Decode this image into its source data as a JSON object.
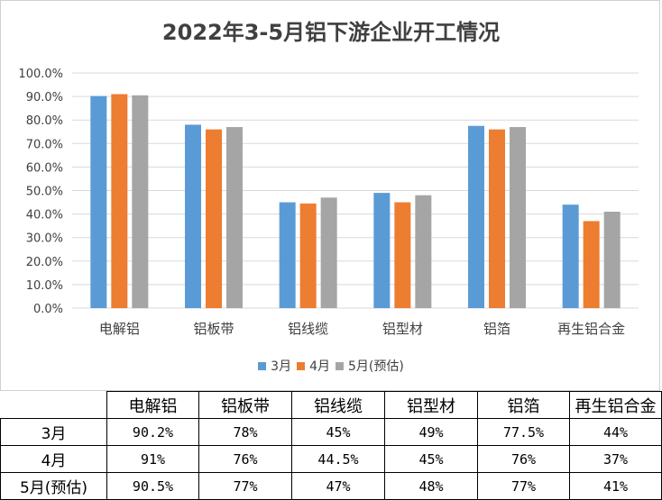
{
  "chart_data": {
    "type": "bar",
    "title": "2022年3-5月铝下游企业开工情况",
    "categories": [
      "电解铝",
      "铝板带",
      "铝线缆",
      "铝型材",
      "铝箔",
      "再生铝合金"
    ],
    "series": [
      {
        "name": "3月",
        "values": [
          90.2,
          78,
          45,
          49,
          77.5,
          44
        ],
        "color": "#5b9bd5"
      },
      {
        "name": "4月",
        "values": [
          91,
          76,
          44.5,
          45,
          76,
          37
        ],
        "color": "#ed7d31"
      },
      {
        "name": "5月(预估)",
        "values": [
          90.5,
          77,
          47,
          48,
          77,
          41
        ],
        "color": "#a5a5a5"
      }
    ],
    "ylim": [
      0,
      100
    ],
    "yticks": [
      "0.0%",
      "10.0%",
      "20.0%",
      "30.0%",
      "40.0%",
      "50.0%",
      "60.0%",
      "70.0%",
      "80.0%",
      "90.0%",
      "100.0%"
    ],
    "grid": true,
    "legend_position": "bottom"
  },
  "table": {
    "headers": [
      "电解铝",
      "铝板带",
      "铝线缆",
      "铝型材",
      "铝箔",
      "再生铝合金"
    ],
    "rows": [
      {
        "label": "3月",
        "cells": [
          "90.2%",
          "78%",
          "45%",
          "49%",
          "77.5%",
          "44%"
        ]
      },
      {
        "label": "4月",
        "cells": [
          "91%",
          "76%",
          "44.5%",
          "45%",
          "76%",
          "37%"
        ]
      },
      {
        "label": "5月(预估)",
        "cells": [
          "90.5%",
          "77%",
          "47%",
          "48%",
          "77%",
          "41%"
        ]
      }
    ]
  }
}
